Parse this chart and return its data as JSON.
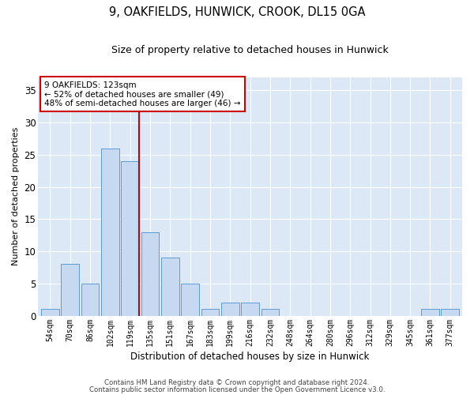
{
  "title1": "9, OAKFIELDS, HUNWICK, CROOK, DL15 0GA",
  "title2": "Size of property relative to detached houses in Hunwick",
  "xlabel": "Distribution of detached houses by size in Hunwick",
  "ylabel": "Number of detached properties",
  "bins": [
    "54sqm",
    "70sqm",
    "86sqm",
    "102sqm",
    "119sqm",
    "135sqm",
    "151sqm",
    "167sqm",
    "183sqm",
    "199sqm",
    "216sqm",
    "232sqm",
    "248sqm",
    "264sqm",
    "280sqm",
    "296sqm",
    "312sqm",
    "329sqm",
    "345sqm",
    "361sqm",
    "377sqm"
  ],
  "values": [
    1,
    8,
    5,
    26,
    24,
    13,
    9,
    5,
    1,
    2,
    2,
    1,
    0,
    0,
    0,
    0,
    0,
    0,
    0,
    1,
    1
  ],
  "bar_color": "#c6d9f0",
  "bar_edge_color": "#5b9bd5",
  "marker_label": "9 OAKFIELDS: 123sqm",
  "annotation_line1": "← 52% of detached houses are smaller (49)",
  "annotation_line2": "48% of semi-detached houses are larger (46) →",
  "red_line_color": "#cc0000",
  "annotation_box_edge": "#cc0000",
  "ylim": [
    0,
    37
  ],
  "yticks": [
    0,
    5,
    10,
    15,
    20,
    25,
    30,
    35
  ],
  "background_color": "#dce8f5",
  "footer1": "Contains HM Land Registry data © Crown copyright and database right 2024.",
  "footer2": "Contains public sector information licensed under the Open Government Licence v3.0."
}
